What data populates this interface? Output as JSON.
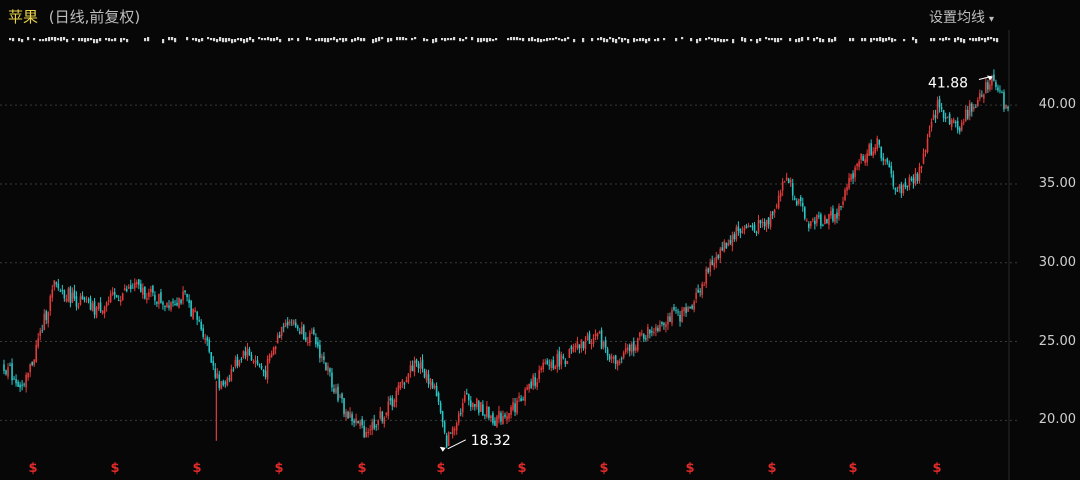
{
  "header": {
    "name": "苹果",
    "sub": "(日线,前复权)",
    "ma_button": "设置均线",
    "ma_caret": "▾"
  },
  "colors": {
    "up": "#e23b3b",
    "down": "#2ac6c6",
    "grid": "#3a3a3a",
    "marker": "#e02a2a",
    "title": "#e8d34a"
  },
  "chart_data": {
    "type": "candlestick",
    "title": "苹果 (日线,前复权)",
    "xlabel": "",
    "ylabel": "",
    "ylim": [
      17.8,
      43.5
    ],
    "yticks": [
      20.0,
      25.0,
      30.0,
      35.0,
      40.0
    ],
    "ytick_labels": [
      "20.00",
      "25.00",
      "30.00",
      "35.00",
      "40.00"
    ],
    "grid": true,
    "annotations": [
      {
        "label": "41.88",
        "kind": "high",
        "x": 0.985,
        "value": 41.88
      },
      {
        "label": "18.32",
        "kind": "low",
        "x": 0.44,
        "value": 18.32
      }
    ],
    "markers": {
      "symbol": "$",
      "count": 12
    },
    "price_path": [
      [
        0.0,
        23.5
      ],
      [
        0.02,
        22.0
      ],
      [
        0.05,
        28.5
      ],
      [
        0.09,
        27.0
      ],
      [
        0.13,
        28.5
      ],
      [
        0.16,
        27.5
      ],
      [
        0.18,
        27.8
      ],
      [
        0.2,
        25.5
      ],
      [
        0.215,
        22.0
      ],
      [
        0.24,
        24.5
      ],
      [
        0.26,
        23.0
      ],
      [
        0.28,
        26.5
      ],
      [
        0.31,
        25.0
      ],
      [
        0.34,
        20.5
      ],
      [
        0.36,
        19.3
      ],
      [
        0.38,
        20.5
      ],
      [
        0.41,
        23.8
      ],
      [
        0.43,
        22.0
      ],
      [
        0.44,
        18.5
      ],
      [
        0.46,
        21.5
      ],
      [
        0.49,
        20.0
      ],
      [
        0.51,
        21.0
      ],
      [
        0.54,
        23.5
      ],
      [
        0.56,
        24.0
      ],
      [
        0.59,
        25.5
      ],
      [
        0.61,
        23.5
      ],
      [
        0.63,
        25.0
      ],
      [
        0.66,
        26.5
      ],
      [
        0.68,
        26.8
      ],
      [
        0.71,
        30.5
      ],
      [
        0.73,
        32.0
      ],
      [
        0.76,
        32.5
      ],
      [
        0.78,
        35.5
      ],
      [
        0.8,
        32.5
      ],
      [
        0.83,
        33.0
      ],
      [
        0.85,
        36.5
      ],
      [
        0.87,
        37.5
      ],
      [
        0.89,
        34.5
      ],
      [
        0.91,
        35.5
      ],
      [
        0.93,
        40.0
      ],
      [
        0.95,
        38.5
      ],
      [
        0.97,
        40.5
      ],
      [
        0.985,
        41.9
      ],
      [
        1.0,
        39.5
      ]
    ]
  }
}
